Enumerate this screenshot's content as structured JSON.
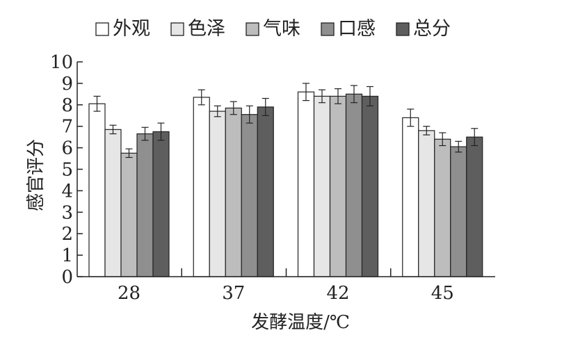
{
  "chart_data": {
    "type": "bar",
    "title": "",
    "xlabel": "发酵温度/℃",
    "ylabel": "感官评分",
    "ylim": [
      0,
      10
    ],
    "yticks": [
      0,
      1,
      2,
      3,
      4,
      5,
      6,
      7,
      8,
      9,
      10
    ],
    "categories": [
      "28",
      "37",
      "42",
      "45"
    ],
    "legend_position": "top",
    "grid": false,
    "error_bars": true,
    "series": [
      {
        "name": "外观",
        "color": "#ffffff",
        "values": [
          8.05,
          8.35,
          8.6,
          7.4
        ],
        "errors": [
          0.35,
          0.35,
          0.4,
          0.4
        ]
      },
      {
        "name": "色泽",
        "color": "#e6e6e6",
        "values": [
          6.85,
          7.7,
          8.4,
          6.8
        ],
        "errors": [
          0.2,
          0.25,
          0.3,
          0.2
        ]
      },
      {
        "name": "气味",
        "color": "#bdbdbd",
        "values": [
          5.75,
          7.85,
          8.4,
          6.4
        ],
        "errors": [
          0.2,
          0.3,
          0.35,
          0.3
        ]
      },
      {
        "name": "口感",
        "color": "#8f8f8f",
        "values": [
          6.65,
          7.55,
          8.5,
          6.05
        ],
        "errors": [
          0.3,
          0.4,
          0.4,
          0.25
        ]
      },
      {
        "name": "总分",
        "color": "#5e5e5e",
        "values": [
          6.75,
          7.9,
          8.4,
          6.5
        ],
        "errors": [
          0.4,
          0.4,
          0.45,
          0.4
        ]
      }
    ]
  }
}
